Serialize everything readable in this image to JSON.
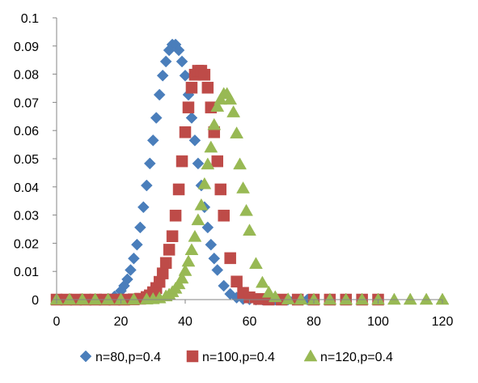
{
  "chart_data": {
    "type": "scatter",
    "title": "",
    "xlabel": "",
    "ylabel": "",
    "xlim": [
      0,
      120
    ],
    "ylim": [
      0,
      0.1
    ],
    "xticks": [
      "0",
      "20",
      "40",
      "60",
      "80",
      "100",
      "120"
    ],
    "yticks": [
      "0",
      "0.01",
      "0.02",
      "0.03",
      "0.04",
      "0.05",
      "0.06",
      "0.07",
      "0.08",
      "0.09",
      "0.1"
    ],
    "grid": false,
    "legend_position": "bottom",
    "series": [
      {
        "name": "n=80,p=0.4",
        "marker": "diamond",
        "color": "#4a7ebb",
        "x": [
          0,
          2,
          4,
          6,
          8,
          10,
          12,
          14,
          16,
          18,
          20,
          21,
          22,
          23,
          24,
          25,
          26,
          27,
          28,
          29,
          30,
          31,
          32,
          33,
          34,
          35,
          36,
          37,
          38,
          39,
          40,
          41,
          42,
          43,
          44,
          45,
          46,
          47,
          48,
          49,
          50,
          52,
          54,
          56,
          58,
          60,
          62,
          64,
          66,
          68,
          70,
          72,
          74,
          76,
          78,
          80
        ],
        "y": [
          0,
          0,
          0,
          0,
          0,
          0,
          0,
          0.0001,
          0.0003,
          0.0011,
          0.0031,
          0.0049,
          0.0072,
          0.0105,
          0.0146,
          0.0195,
          0.0256,
          0.0328,
          0.0405,
          0.0483,
          0.0565,
          0.0645,
          0.0727,
          0.0795,
          0.0845,
          0.0885,
          0.0905,
          0.0905,
          0.0885,
          0.0845,
          0.0795,
          0.0727,
          0.0645,
          0.0565,
          0.0483,
          0.0405,
          0.0328,
          0.0256,
          0.0195,
          0.0146,
          0.0105,
          0.0049,
          0.002,
          0.0007,
          0.0002,
          0.0001,
          0,
          0,
          0,
          0,
          0,
          0,
          0,
          0,
          0,
          0
        ]
      },
      {
        "name": "n=100,p=0.4",
        "marker": "square",
        "color": "#be4b48",
        "x": [
          0,
          3,
          6,
          9,
          12,
          15,
          18,
          21,
          24,
          26,
          28,
          29,
          30,
          31,
          32,
          33,
          34,
          35,
          36,
          37,
          38,
          39,
          40,
          41,
          42,
          43,
          44,
          45,
          46,
          47,
          48,
          49,
          50,
          51,
          52,
          54,
          56,
          58,
          60,
          63,
          66,
          70,
          75,
          80,
          85,
          90,
          95,
          100
        ],
        "y": [
          0,
          0,
          0,
          0,
          0,
          0,
          0,
          0,
          0.0001,
          0.0003,
          0.0009,
          0.0015,
          0.0026,
          0.0041,
          0.0063,
          0.0093,
          0.013,
          0.0177,
          0.0225,
          0.0298,
          0.0391,
          0.0491,
          0.0594,
          0.0682,
          0.0752,
          0.0798,
          0.0812,
          0.0812,
          0.0798,
          0.0752,
          0.0682,
          0.0594,
          0.0491,
          0.0391,
          0.0298,
          0.0147,
          0.0064,
          0.0024,
          0.0008,
          0.0002,
          0,
          0,
          0,
          0,
          0,
          0,
          0,
          0
        ]
      },
      {
        "name": "n=120,p=0.4",
        "marker": "triangle",
        "color": "#98b954",
        "x": [
          0,
          4,
          8,
          12,
          16,
          20,
          24,
          28,
          30,
          32,
          34,
          35,
          36,
          37,
          38,
          39,
          40,
          41,
          42,
          43,
          44,
          45,
          46,
          47,
          48,
          49,
          50,
          51,
          52,
          53,
          54,
          55,
          56,
          57,
          58,
          59,
          60,
          62,
          64,
          66,
          68,
          72,
          76,
          80,
          85,
          90,
          95,
          100,
          105,
          110,
          115,
          120
        ],
        "y": [
          0,
          0,
          0,
          0,
          0,
          0,
          0,
          0.0001,
          0.0002,
          0.0005,
          0.0012,
          0.0018,
          0.0027,
          0.0039,
          0.0055,
          0.0075,
          0.0102,
          0.0135,
          0.0176,
          0.0223,
          0.0282,
          0.0335,
          0.041,
          0.048,
          0.054,
          0.062,
          0.0685,
          0.071,
          0.073,
          0.073,
          0.071,
          0.0665,
          0.059,
          0.048,
          0.0395,
          0.0315,
          0.0245,
          0.0127,
          0.006,
          0.0025,
          0.0009,
          0.0001,
          0,
          0,
          0,
          0,
          0,
          0,
          0,
          0,
          0,
          0
        ]
      }
    ]
  }
}
